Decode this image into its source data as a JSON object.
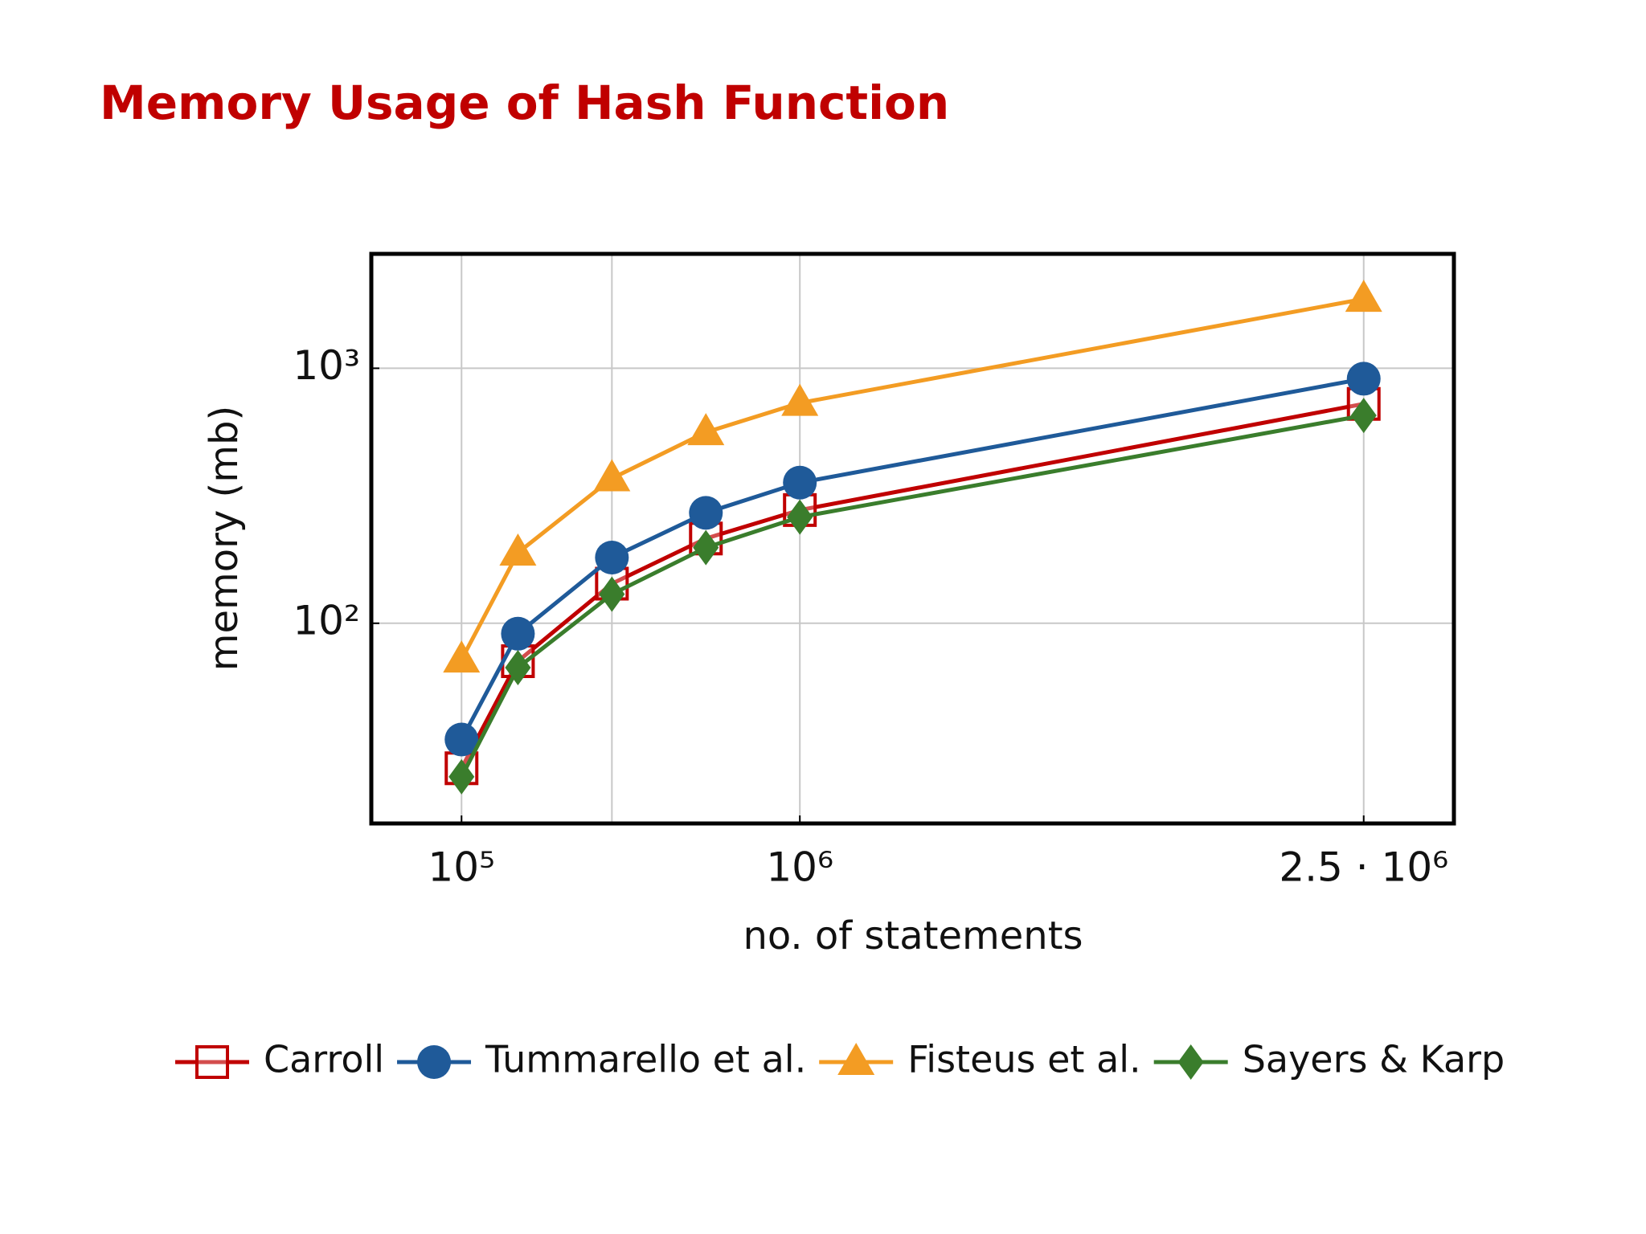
{
  "chart_data": {
    "type": "line",
    "title": "Memory Usage of Hash Function",
    "x_label": "no. of statements",
    "y_label": "memory (mb)",
    "x": [
      100000,
      250000,
      500000,
      750000,
      1000000,
      2500000
    ],
    "series": [
      {
        "name": "Carroll",
        "color": "#c00000",
        "marker": "square",
        "values": [
          27,
          71,
          143,
          215,
          278,
          725
        ]
      },
      {
        "name": "Tummarello et al.",
        "color": "#1f5a99",
        "marker": "circle",
        "values": [
          35,
          91,
          181,
          271,
          356,
          910
        ]
      },
      {
        "name": "Fisteus et al.",
        "color": "#f39c23",
        "marker": "triangle",
        "values": [
          72,
          189,
          370,
          561,
          731,
          1870
        ]
      },
      {
        "name": "Sayers & Karp",
        "color": "#3a7d2c",
        "marker": "diamond",
        "values": [
          25,
          67,
          130,
          198,
          261,
          653
        ]
      }
    ],
    "xlim": [
      -140000,
      2740000
    ],
    "xticks": [
      {
        "value": 100000,
        "label": "10⁵"
      },
      {
        "value": 1000000,
        "label": "10⁶"
      },
      {
        "value": 2500000,
        "label": "2.5 · 10⁶"
      }
    ],
    "xgrid_extra": [
      500000
    ],
    "ylim": [
      16.4,
      2810
    ],
    "yticks": [
      {
        "value": 100,
        "label": "10²"
      },
      {
        "value": 1000,
        "label": "10³"
      }
    ],
    "ylog": true,
    "grid": true,
    "legend": "bottom"
  }
}
